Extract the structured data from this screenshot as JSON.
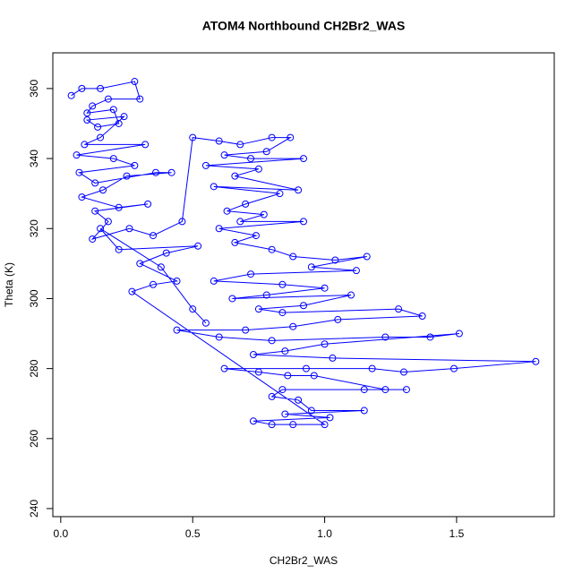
{
  "chart_data": {
    "type": "line",
    "title": "ATOM4 Northbound CH2Br2_WAS",
    "xlabel": "CH2Br2_WAS",
    "ylabel": "Theta (K)",
    "marker": "circle",
    "xlim": [
      -0.03,
      1.87
    ],
    "ylim": [
      237.7,
      370.2
    ],
    "xticks": [
      {
        "value": 0,
        "label": "0.0"
      },
      0.5,
      {
        "value": 1,
        "label": "1.0"
      },
      1.5
    ],
    "yticks": [
      240,
      260,
      280,
      300,
      320,
      340,
      360
    ],
    "series": [
      {
        "color": "#0000ff",
        "x": [
          0.04,
          0.08,
          0.15,
          0.28,
          0.3,
          0.18,
          0.12,
          0.1,
          0.2,
          0.22,
          0.14,
          0.1,
          0.24,
          0.15,
          0.09,
          0.32,
          0.06,
          0.2,
          0.28,
          0.07,
          0.13,
          0.36,
          0.42,
          0.25,
          0.16,
          0.08,
          0.22,
          0.33,
          0.13,
          0.18,
          0.12,
          0.26,
          0.35,
          0.46,
          0.5,
          0.6,
          0.68,
          0.8,
          0.87,
          0.78,
          0.62,
          0.72,
          0.92,
          0.55,
          0.75,
          0.66,
          0.9,
          0.58,
          0.83,
          0.7,
          0.63,
          0.77,
          0.68,
          0.92,
          0.6,
          0.74,
          0.66,
          0.8,
          0.88,
          1.04,
          1.16,
          0.95,
          1.12,
          0.72,
          0.58,
          0.84,
          1.0,
          0.78,
          0.65,
          1.1,
          0.92,
          0.75,
          0.84,
          1.28,
          1.37,
          1.05,
          0.88,
          0.7,
          0.44,
          0.6,
          0.8,
          1.23,
          1.4,
          1.51,
          1.0,
          0.85,
          0.73,
          1.03,
          1.8,
          1.49,
          1.3,
          1.18,
          0.93,
          0.62,
          0.75,
          0.86,
          0.96,
          1.23,
          1.31,
          1.15,
          0.84,
          0.8,
          0.9,
          0.95,
          1.15,
          0.85,
          1.02,
          0.73,
          0.8,
          0.88,
          1.0,
          0.27,
          0.35,
          0.44,
          0.3,
          0.4,
          0.52,
          0.22,
          0.15,
          0.38,
          0.5,
          0.55
        ],
        "values": [
          358,
          360,
          360,
          362,
          357,
          357,
          355,
          353,
          354,
          350,
          349,
          351,
          352,
          346,
          344,
          344,
          341,
          340,
          338,
          336,
          333,
          336,
          336,
          335,
          331,
          329,
          326,
          327,
          325,
          322,
          317,
          320,
          318,
          322,
          346,
          345,
          344,
          346,
          346,
          342,
          341,
          340,
          340,
          338,
          337,
          335,
          331,
          332,
          330,
          327,
          325,
          324,
          322,
          322,
          320,
          318,
          316,
          314,
          312,
          311,
          312,
          309,
          308,
          307,
          305,
          304,
          303,
          301,
          300,
          301,
          298,
          297,
          296,
          297,
          295,
          294,
          292,
          291,
          291,
          289,
          288,
          289,
          289,
          290,
          287,
          285,
          284,
          283,
          282,
          280,
          279,
          280,
          280,
          280,
          279,
          278,
          278,
          274,
          274,
          274,
          274,
          272,
          271,
          268,
          268,
          267,
          266,
          265,
          264,
          264,
          264,
          302,
          304,
          305,
          310,
          313,
          315,
          314,
          320,
          309,
          297,
          293
        ]
      }
    ]
  }
}
